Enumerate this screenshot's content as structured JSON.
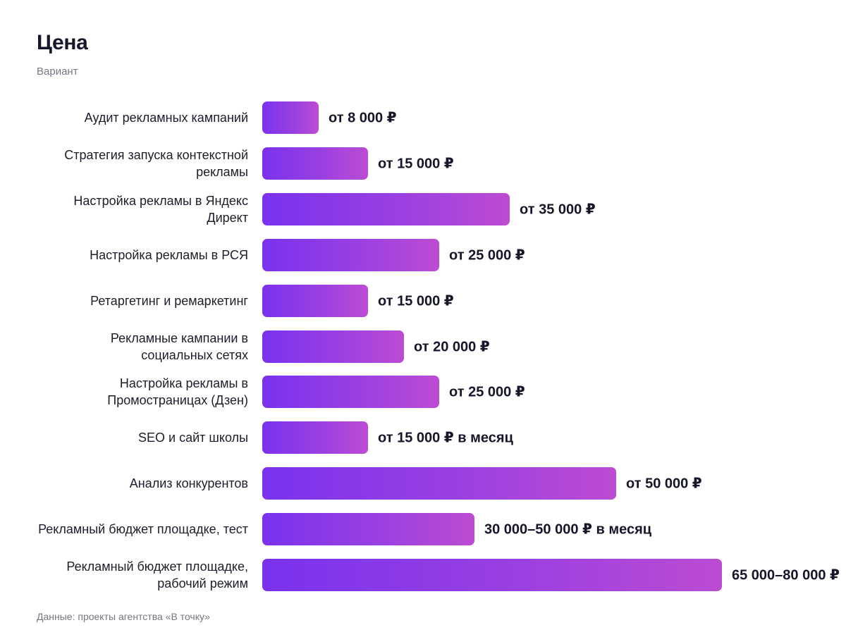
{
  "chart_data": {
    "type": "bar",
    "orientation": "horizontal",
    "title": "Цена",
    "subtitle": "Вариант",
    "footnote": "Данные: проекты агентства «В точку»",
    "categories": [
      "Аудит рекламных кампаний",
      "Стратегия запуска контекстной рекламы",
      "Настройка рекламы в Яндекс Директ",
      "Настройка рекламы в РСЯ",
      "Ретаргетинг и ремаркетинг",
      "Рекламные кампании в социальных сетях",
      "Настройка рекламы в Промостраницах (Дзен)",
      "SEO и сайт школы",
      "Анализ конкурентов",
      "Рекламный бюджет площадке, тест",
      "Рекламный бюджет площадке, рабочий режим"
    ],
    "values": [
      8000,
      15000,
      35000,
      25000,
      15000,
      20000,
      25000,
      15000,
      50000,
      30000,
      65000
    ],
    "value_labels": [
      "от 8 000 ₽",
      "от 15 000 ₽",
      "от 35 000 ₽",
      "от 25 000 ₽",
      "от 15 000 ₽",
      "от 20 000 ₽",
      "от 25 000 ₽",
      "от 15 000 ₽ в месяц",
      "от 50 000 ₽",
      "30 000–50 000 ₽ в месяц",
      "65 000–80 000 ₽"
    ],
    "xlim": [
      0,
      65000
    ],
    "grid": false,
    "legend": "none",
    "colors": {
      "bar_start": "#7a32ee",
      "bar_end": "#bd4bd3",
      "text": "#16162b",
      "muted": "#757585"
    }
  }
}
